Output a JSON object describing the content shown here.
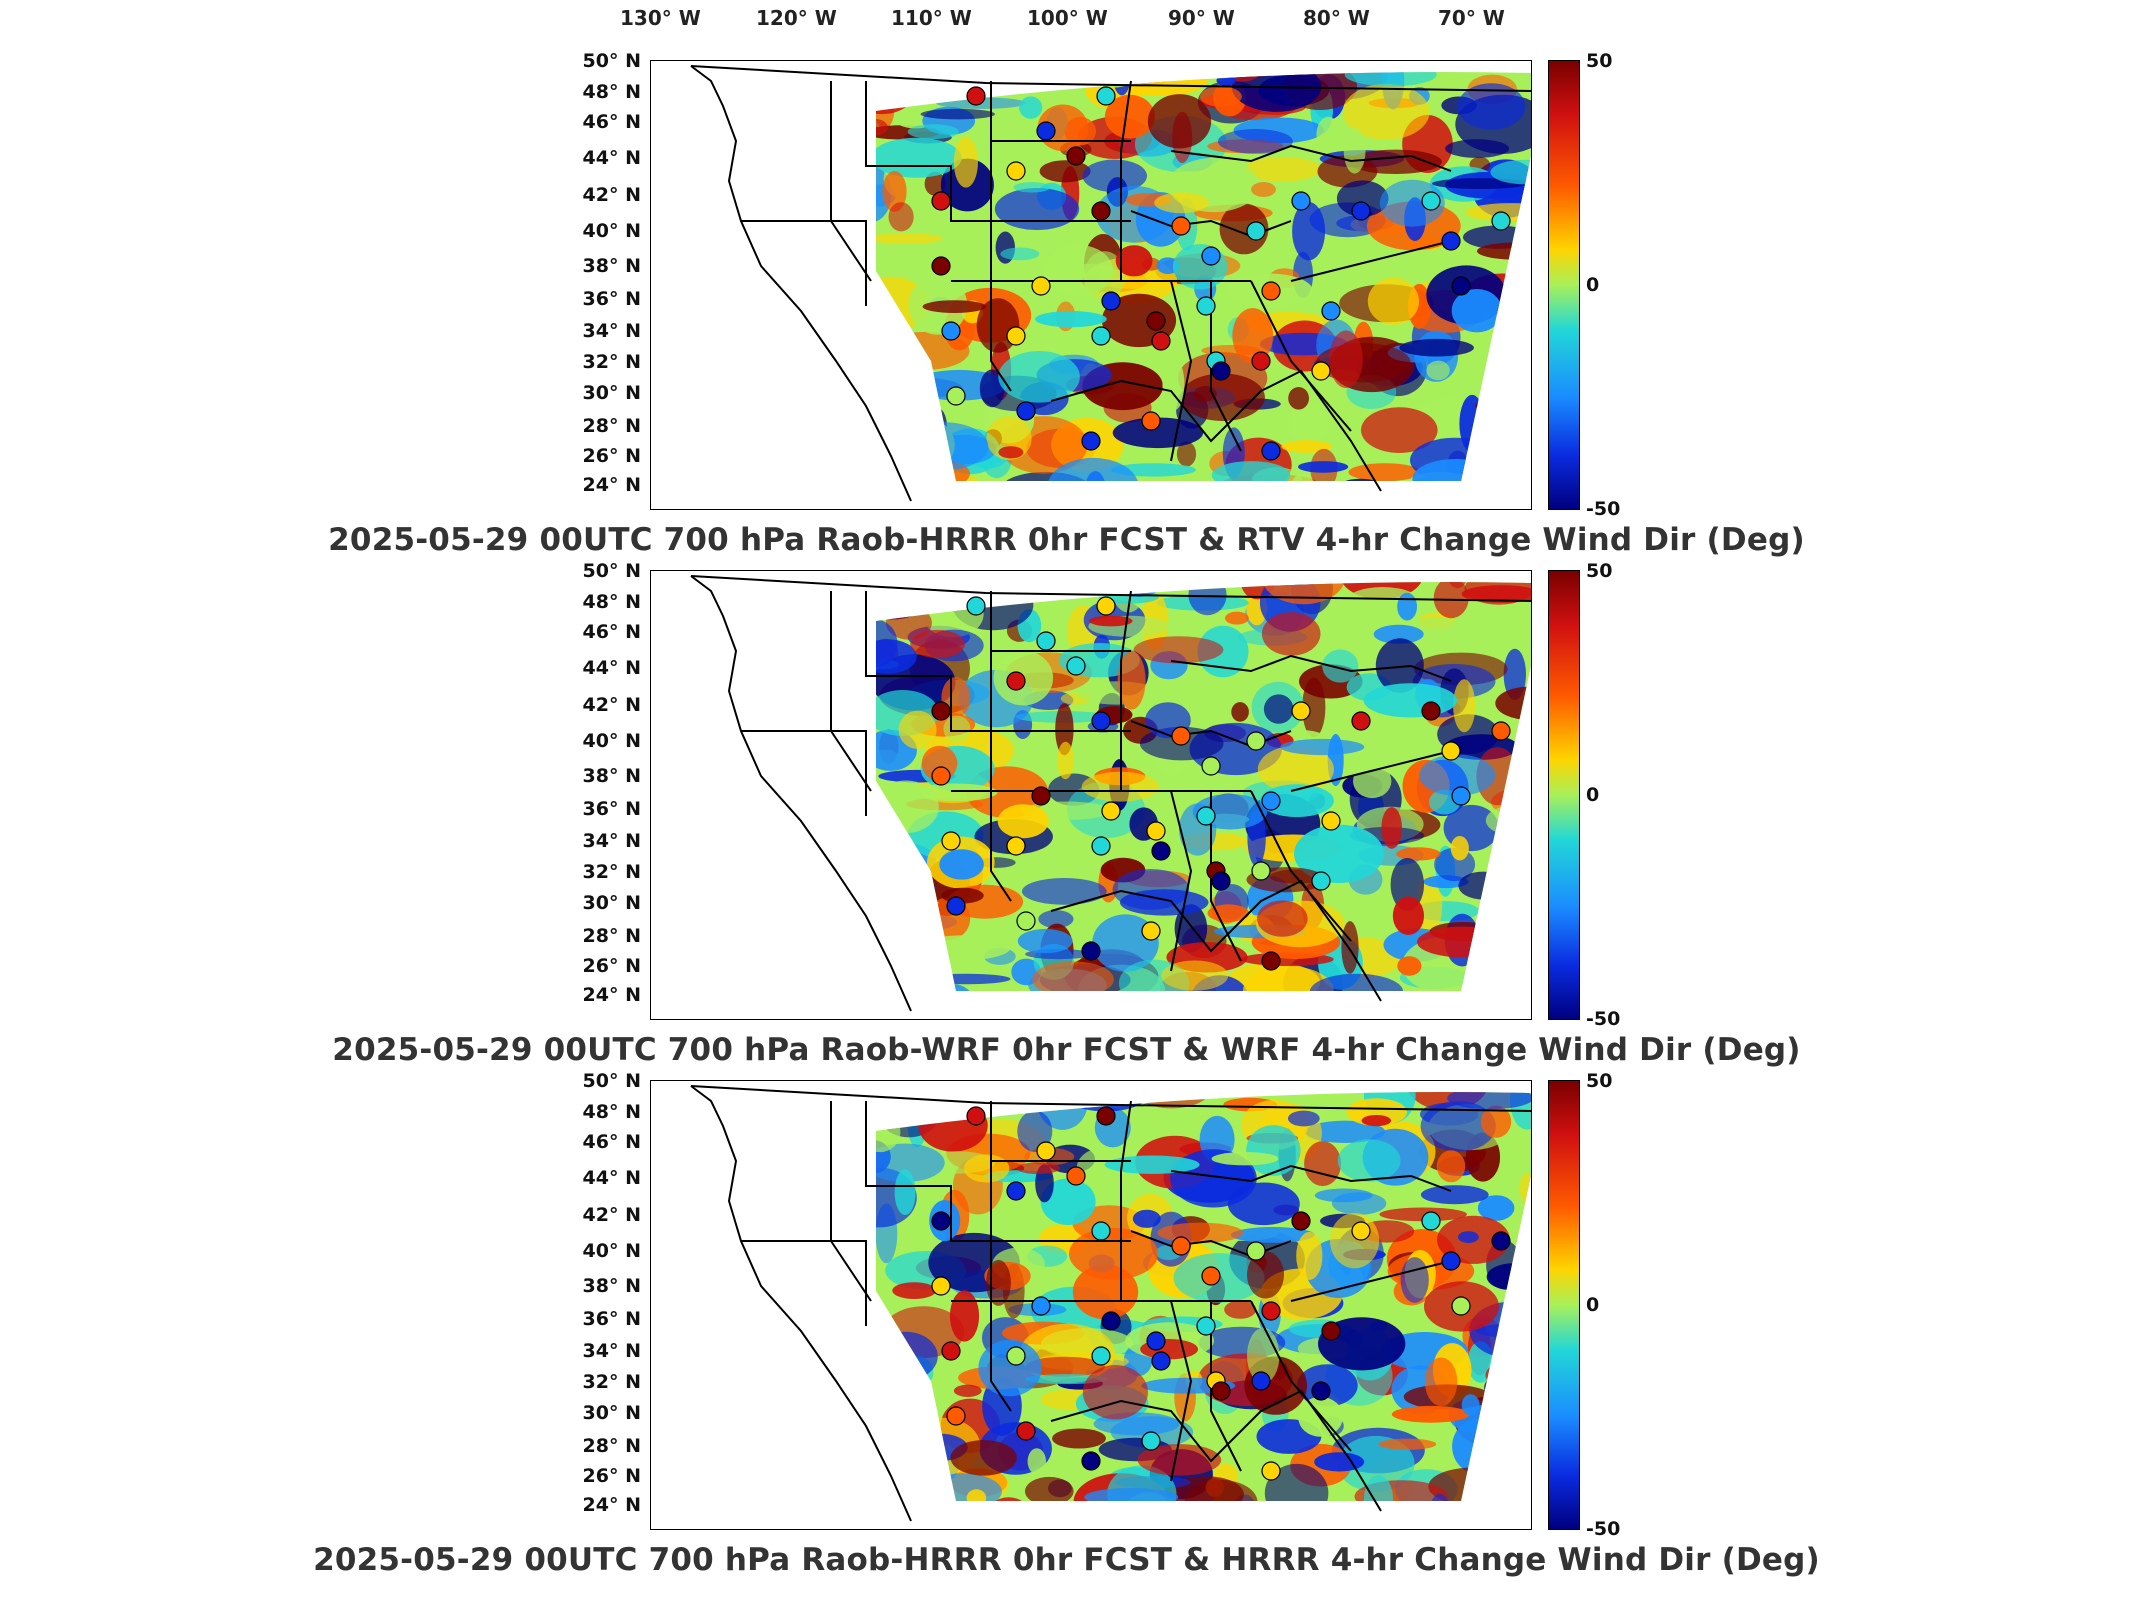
{
  "longitude_labels": [
    "130° W",
    "120° W",
    "110° W",
    "100° W",
    "90° W",
    "80° W",
    "70° W"
  ],
  "latitude_labels": [
    "50° N",
    "48° N",
    "46° N",
    "44° N",
    "42° N",
    "40° N",
    "38° N",
    "36° N",
    "34° N",
    "32° N",
    "30° N",
    "28° N",
    "26° N",
    "24° N"
  ],
  "colorbar": {
    "max": "50",
    "mid": "0",
    "min": "-50",
    "colors": [
      "#7a0000",
      "#d01010",
      "#ff5a00",
      "#ffd400",
      "#a8f05a",
      "#22d7d7",
      "#1a8cff",
      "#0a2be0",
      "#000080"
    ]
  },
  "panels": [
    {
      "caption": "2025-05-29 00UTC 700 hPa Raob-HRRR 0hr FCST & RTV 4-hr Change Wind Dir (Deg)"
    },
    {
      "caption": "2025-05-29 00UTC 700 hPa Raob-WRF 0hr FCST & WRF 4-hr Change Wind Dir (Deg)"
    },
    {
      "caption": "2025-05-29 00UTC 700 hPa Raob-HRRR 0hr FCST & HRRR 4-hr Change Wind Dir (Deg)"
    }
  ]
}
